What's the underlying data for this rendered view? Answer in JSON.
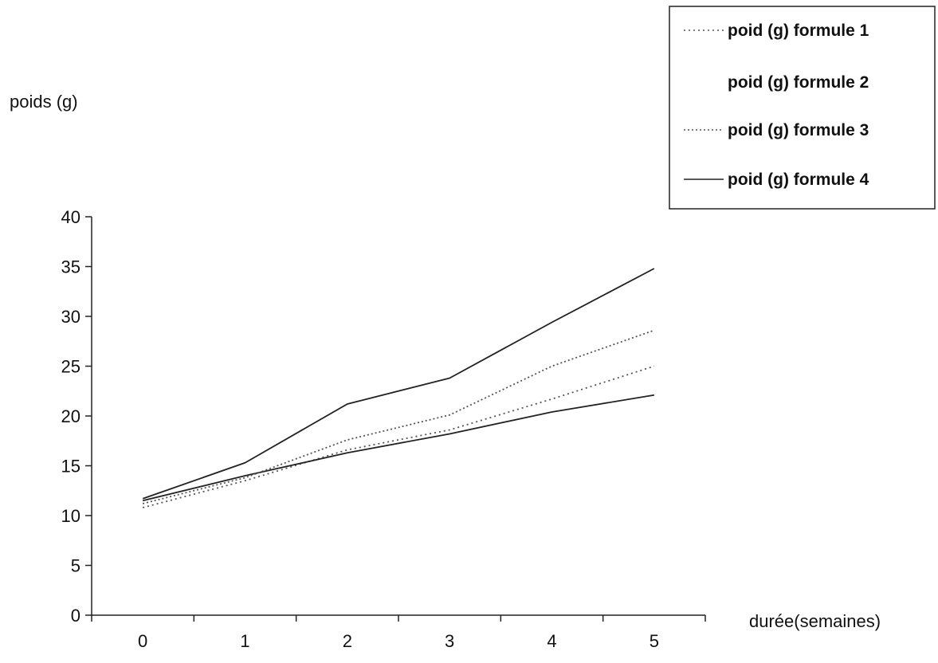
{
  "chart_data": {
    "type": "line",
    "title": "",
    "xlabel": "durée(semaines)",
    "ylabel": "poids (g)",
    "x": [
      0,
      1,
      2,
      3,
      4,
      5
    ],
    "xlim": [
      -0.5,
      5.5
    ],
    "ylim": [
      0,
      40
    ],
    "xticks": [
      0,
      1,
      2,
      3,
      4,
      5
    ],
    "yticks": [
      0,
      5,
      10,
      15,
      20,
      25,
      30,
      35,
      40
    ],
    "grid": false,
    "legend_position": "top-right",
    "series": [
      {
        "name": "poid (g) formule 1",
        "values": [
          10.8,
          13.5,
          16.6,
          18.6,
          21.7,
          25.0
        ],
        "color": "#555555",
        "dash": "2,4"
      },
      {
        "name": "poid (g) formule 2",
        "values": [
          11.5,
          14.0,
          16.3,
          18.2,
          20.4,
          22.1
        ],
        "color": "#222222",
        "dash": "none"
      },
      {
        "name": "poid (g) formule 3",
        "values": [
          11.2,
          13.8,
          17.6,
          20.1,
          25.0,
          28.6
        ],
        "color": "#555555",
        "dash": "2,3"
      },
      {
        "name": "poid (g) formule 4",
        "values": [
          11.7,
          15.3,
          21.2,
          23.8,
          29.4,
          34.8
        ],
        "color": "#222222",
        "dash": "none"
      }
    ]
  }
}
